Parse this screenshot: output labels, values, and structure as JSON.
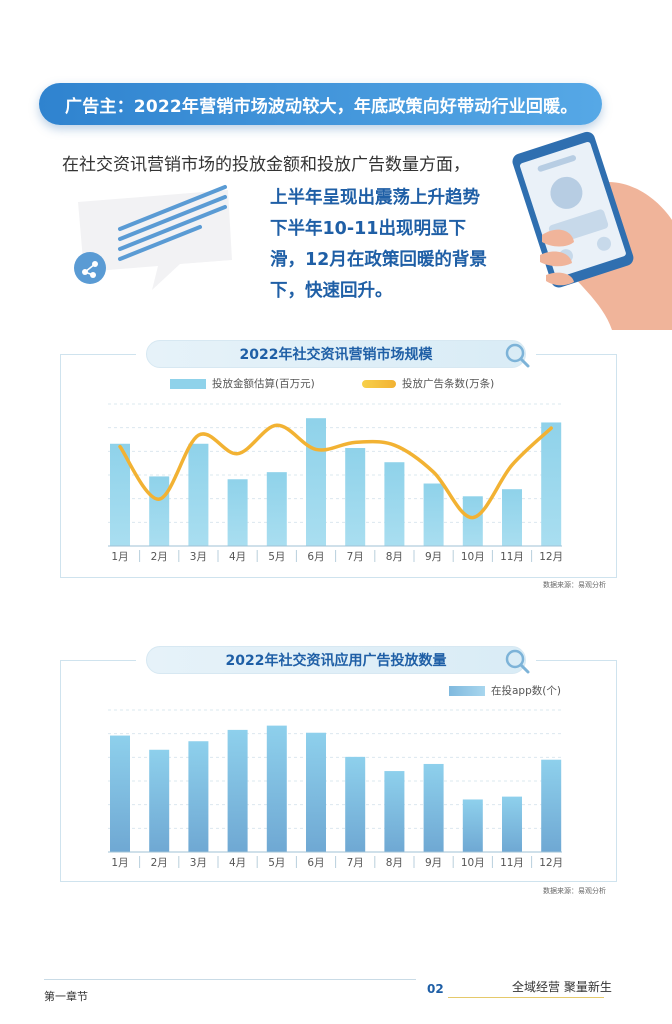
{
  "banner": {
    "text": "广告主：2022年营销市场波动较大，年底政策向好带动行业回暖。"
  },
  "intro": {
    "text": "在社交资讯营销市场的投放金额和投放广告数量方面，"
  },
  "highlight": {
    "lines": [
      "上半年呈现出震荡上升趋势",
      "下半年10-11出现明显下",
      "滑，12月在政策回暖的背景",
      "下，快速回升。"
    ]
  },
  "colors": {
    "accent": "#1f5fa6",
    "bar": "#8fd2ea",
    "line": "#f2b233",
    "banner": "#2f83cf"
  },
  "icons": {
    "magnifier": "search-icon",
    "chat": "chat-bubble-icon",
    "phone": "phone-hand-icon"
  },
  "chart_data": [
    {
      "type": "bar",
      "title": "2022年社交资讯营销市场规模",
      "categories": [
        "1月",
        "2月",
        "3月",
        "4月",
        "5月",
        "6月",
        "7月",
        "8月",
        "9月",
        "10月",
        "11月",
        "12月"
      ],
      "series": [
        {
          "name": "投放金额估算(百万元)",
          "type": "bar",
          "values": [
            72,
            49,
            72,
            47,
            52,
            90,
            69,
            59,
            44,
            35,
            40,
            87
          ]
        },
        {
          "name": "投放广告条数(万条)",
          "type": "line",
          "values": [
            70,
            33,
            78,
            65,
            85,
            68,
            73,
            71,
            52,
            20,
            57,
            83
          ]
        }
      ],
      "ylim": [
        0,
        100
      ],
      "grid": true,
      "legend": "top",
      "source": "数据来源：易观分析"
    },
    {
      "type": "bar",
      "title": "2022年社交资讯应用广告投放数量",
      "categories": [
        "1月",
        "2月",
        "3月",
        "4月",
        "5月",
        "6月",
        "7月",
        "8月",
        "9月",
        "10月",
        "11月",
        "12月"
      ],
      "series": [
        {
          "name": "在投app数(个)",
          "values": [
            82,
            72,
            78,
            86,
            89,
            84,
            67,
            57,
            62,
            37,
            39,
            65
          ]
        }
      ],
      "ylim": [
        0,
        100
      ],
      "grid": true,
      "legend": "top-right",
      "source": "数据来源：易观分析"
    }
  ],
  "footer": {
    "chapter": "第一章节",
    "page": "02",
    "slogan": "全域经营 聚量新生"
  }
}
